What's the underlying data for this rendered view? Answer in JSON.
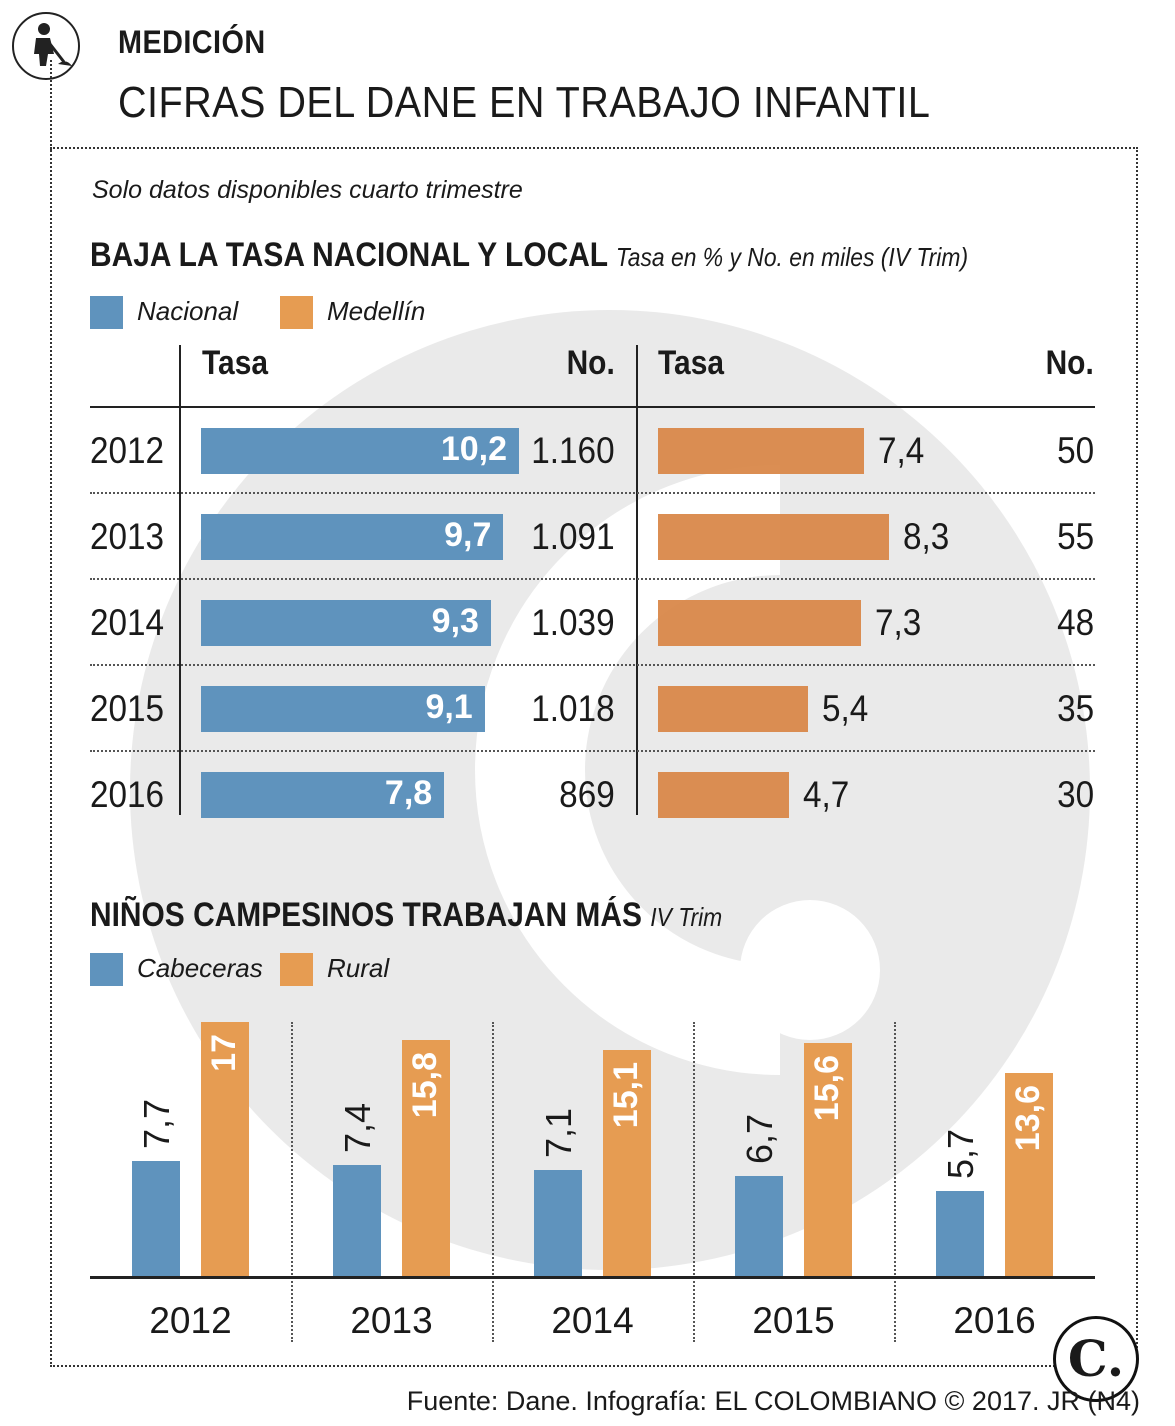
{
  "header": {
    "kicker": "MEDICIÓN",
    "title": "CIFRAS DEL DANE EN TRABAJO INFANTIL",
    "note": "Solo datos disponibles cuarto trimestre",
    "icon": "worker-shovel-icon"
  },
  "colors": {
    "blue": "#5f93bd",
    "orange": "#e69c52",
    "watermark": "#e6e6e6"
  },
  "section1": {
    "title": "BAJA LA TASA NACIONAL Y LOCAL",
    "subtitle": "Tasa en % y No. en miles (IV Trim)",
    "legend": [
      "Nacional",
      "Medellín"
    ],
    "headers": {
      "tasa_left": "Tasa",
      "no_left": "No.",
      "tasa_right": "Tasa",
      "no_right": "No."
    }
  },
  "section2": {
    "title": "NIÑOS CAMPESINOS TRABAJAN MÁS",
    "subtitle": "IV Trim",
    "legend": [
      "Cabeceras",
      "Rural"
    ]
  },
  "footer": {
    "source": "Fuente: Dane. Infografía: EL COLOMBIANO © 2017. JR (N4)",
    "logo": "C."
  },
  "chart_data": [
    {
      "type": "bar",
      "orientation": "horizontal",
      "title": "BAJA LA TASA NACIONAL Y LOCAL",
      "subtitle": "Tasa en % y No. en miles (IV Trim)",
      "categories": [
        "2012",
        "2013",
        "2014",
        "2015",
        "2016"
      ],
      "series": [
        {
          "name": "Nacional",
          "tasa": [
            10.2,
            9.7,
            9.3,
            9.1,
            7.8
          ],
          "tasa_labels": [
            "10,2",
            "9,7",
            "9,3",
            "9,1",
            "7,8"
          ],
          "numero": [
            "1.160",
            "1.091",
            "1.039",
            "1.018",
            "869"
          ]
        },
        {
          "name": "Medellín",
          "tasa": [
            7.4,
            8.3,
            7.3,
            5.4,
            4.7
          ],
          "tasa_labels": [
            "7,4",
            "8,3",
            "7,3",
            "5,4",
            "4,7"
          ],
          "numero": [
            "50",
            "55",
            "48",
            "35",
            "30"
          ]
        }
      ],
      "xlim": [
        0,
        10.2
      ]
    },
    {
      "type": "bar",
      "orientation": "vertical",
      "title": "NIÑOS CAMPESINOS TRABAJAN MÁS",
      "subtitle": "IV Trim",
      "categories": [
        "2012",
        "2013",
        "2014",
        "2015",
        "2016"
      ],
      "series": [
        {
          "name": "Cabeceras",
          "values": [
            7.7,
            7.4,
            7.1,
            6.7,
            5.7
          ],
          "labels": [
            "7,7",
            "7,4",
            "7,1",
            "6,7",
            "5,7"
          ]
        },
        {
          "name": "Rural",
          "values": [
            17,
            15.8,
            15.1,
            15.6,
            13.6
          ],
          "labels": [
            "17",
            "15,8",
            "15,1",
            "15,6",
            "13,6"
          ]
        }
      ],
      "ylim": [
        0,
        17
      ]
    }
  ]
}
